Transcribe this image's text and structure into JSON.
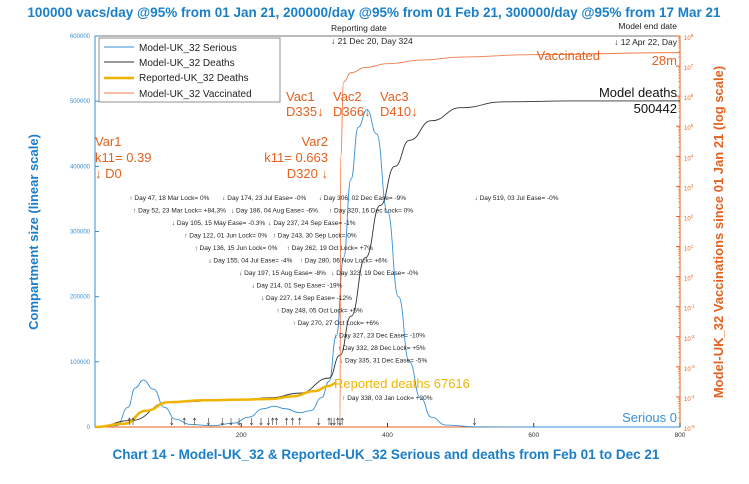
{
  "chart_data": {
    "type": "line",
    "title": "100000 vacs/day @95% from 01 Jan 21, 200000/day @95% from 01 Feb 21, 300000/day @95% from 17 Mar 21",
    "caption": "Chart 14 - Model-UK_32 & Reported-UK_32 Serious and deaths from Feb 01 to Dec 21",
    "xlabel": "",
    "ylabel": "Compartment size (linear scale)",
    "y2label": "Model-UK_32 Vaccinations since 01 Jan 21 (log scale)",
    "xlim": [
      0,
      800
    ],
    "ylim": [
      0,
      600000
    ],
    "y2lim_log10": [
      -5,
      8
    ],
    "x_ticks": [
      "200",
      "400",
      "600",
      "800"
    ],
    "x_tick_values": [
      200,
      400,
      600,
      800
    ],
    "y_ticks": [
      "0",
      "100000",
      "200000",
      "300000",
      "400000",
      "500000",
      "600000"
    ],
    "y_tick_values": [
      0,
      100000,
      200000,
      300000,
      400000,
      500000,
      600000
    ],
    "y2_tick_exponents": [
      -5,
      -4,
      -3,
      -2,
      -1,
      0,
      1,
      2,
      3,
      4,
      5,
      6,
      7,
      8
    ],
    "legend_position": "top-left",
    "legend": [
      "Model-UK_32 Serious",
      "Model-UK_32 Deaths",
      "Reported-UK_32 Deaths",
      "Model-UK_32 Vaccinated"
    ],
    "series": [
      {
        "name": "Model-UK_32 Serious",
        "color": "#3a8fd4",
        "axis": "left",
        "x": [
          0,
          30,
          45,
          55,
          66,
          80,
          95,
          110,
          130,
          160,
          190,
          210,
          230,
          245,
          260,
          280,
          295,
          310,
          320,
          330,
          340,
          350,
          360,
          372,
          385,
          400,
          415,
          430,
          445,
          460,
          480,
          520,
          600,
          800
        ],
        "y": [
          0,
          2000,
          30000,
          60000,
          72000,
          58000,
          30000,
          12000,
          4000,
          2000,
          6000,
          15000,
          28000,
          32000,
          28000,
          22000,
          25000,
          45000,
          70000,
          140000,
          260000,
          380000,
          460000,
          487000,
          450000,
          330000,
          200000,
          100000,
          45000,
          15000,
          3000,
          200,
          0,
          0
        ]
      },
      {
        "name": "Model-UK_32 Deaths",
        "color": "#333333",
        "axis": "left",
        "x": [
          0,
          50,
          100,
          200,
          240,
          280,
          320,
          335,
          350,
          370,
          390,
          410,
          430,
          460,
          500,
          560,
          650,
          800
        ],
        "y": [
          0,
          10000,
          38000,
          42000,
          45000,
          52000,
          75000,
          110000,
          170000,
          260000,
          340000,
          400000,
          440000,
          470000,
          490000,
          499000,
          500300,
          500442
        ]
      },
      {
        "name": "Reported-UK_32 Deaths",
        "color": "#f0b400",
        "axis": "left",
        "x": [
          0,
          40,
          70,
          100,
          150,
          200,
          240,
          270,
          300,
          320,
          330
        ],
        "y": [
          0,
          5000,
          25000,
          38000,
          41000,
          42000,
          43000,
          47000,
          55000,
          63000,
          67616
        ]
      },
      {
        "name": "Model-UK_32 Vaccinated",
        "color": "#f07a4a",
        "axis": "right-log",
        "x": [
          335,
          336,
          340,
          350,
          370,
          400,
          450,
          500,
          600,
          800
        ],
        "y": [
          1e-05,
          10000,
          3000000,
          6000000,
          9000000,
          12000000,
          16000000,
          20000000,
          24000000,
          28000000
        ]
      }
    ],
    "annotations": {
      "var1": [
        "Var1",
        "k11= 0.39",
        "↓ D0"
      ],
      "var2": [
        "Var2",
        "k11= 0.663",
        "D320 ↓"
      ],
      "vac1": [
        "Vac1",
        "D335↓"
      ],
      "vac2": [
        "Vac2",
        "D366↓"
      ],
      "vac3": [
        "Vac3",
        "D410↓"
      ],
      "reporting": [
        "Reporting date",
        "↓ 21 Dec 20, Day 324"
      ],
      "model_end": [
        "Model end date",
        "↓ 12 Apr 22, Day"
      ],
      "vaccinated": [
        "Vaccinated",
        "28m"
      ],
      "model_deaths": [
        "Model deaths",
        "500442"
      ],
      "reported_deaths": "Reported deaths 67616",
      "serious": "Serious 0"
    },
    "events": [
      {
        "day": 47,
        "dir": "up",
        "text": "Day 47, 18 Mar Lock= 0%"
      },
      {
        "day": 52,
        "dir": "up",
        "text": "Day 52, 23 Mar Lock= +84.3%"
      },
      {
        "day": 105,
        "dir": "down",
        "text": "Day 105, 15 May Ease= -0.3%"
      },
      {
        "day": 122,
        "dir": "up",
        "text": "Day 122, 01 Jun Lock= 0%"
      },
      {
        "day": 136,
        "dir": "up",
        "text": "Day 136, 15 Jun Lock= 0%"
      },
      {
        "day": 155,
        "dir": "down",
        "text": "Day 155, 04 Jul Ease= -4%"
      },
      {
        "day": 174,
        "dir": "down",
        "text": "Day 174, 23 Jul Ease= -0%"
      },
      {
        "day": 186,
        "dir": "down",
        "text": "Day 186, 04 Aug Ease= -6%"
      },
      {
        "day": 197,
        "dir": "down",
        "text": "Day 197, 15 Aug Ease= -8%"
      },
      {
        "day": 214,
        "dir": "down",
        "text": "Day 214, 01 Sep Ease= -19%"
      },
      {
        "day": 227,
        "dir": "down",
        "text": "Day 227, 14 Sep Ease= -12%"
      },
      {
        "day": 237,
        "dir": "down",
        "text": "Day 237, 24 Sep Ease= -1%"
      },
      {
        "day": 243,
        "dir": "up",
        "text": "Day 243, 30 Sep Lock= 0%"
      },
      {
        "day": 248,
        "dir": "up",
        "text": "Day 248, 05 Oct Lock= +5%"
      },
      {
        "day": 262,
        "dir": "up",
        "text": "Day 262, 19 Oct Lock= +7%"
      },
      {
        "day": 270,
        "dir": "up",
        "text": "Day 270, 27 Oct Lock= +6%"
      },
      {
        "day": 280,
        "dir": "up",
        "text": "Day 280, 06 Nov Lock= +6%"
      },
      {
        "day": 306,
        "dir": "down",
        "text": "Day 306, 02 Dec Ease= -9%"
      },
      {
        "day": 320,
        "dir": "up",
        "text": "Day 320, 16 Dec Lock= 0%"
      },
      {
        "day": 323,
        "dir": "down",
        "text": "Day 323, 19 Dec Ease= -0%"
      },
      {
        "day": 327,
        "dir": "down",
        "text": "Day 327, 23 Dec Ease= -10%"
      },
      {
        "day": 332,
        "dir": "up",
        "text": "Day 332, 28 Dec Lock= +5%"
      },
      {
        "day": 335,
        "dir": "down",
        "text": "Day 335, 31 Dec Ease= -5%"
      },
      {
        "day": 338,
        "dir": "up",
        "text": "Day 338, 03 Jan Lock= +20%"
      },
      {
        "day": 519,
        "dir": "down",
        "text": "Day 519, 03 Jul Ease= -0%"
      }
    ]
  }
}
